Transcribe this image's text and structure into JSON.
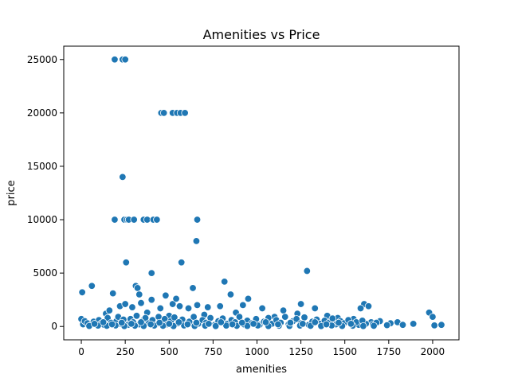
{
  "chart_data": {
    "type": "scatter",
    "title": "Amenities vs Price",
    "xlabel": "amenities",
    "ylabel": "price",
    "xlim": [
      -100,
      2150
    ],
    "ylim": [
      -1250,
      26250
    ],
    "xticks": [
      0,
      250,
      500,
      750,
      1000,
      1250,
      1500,
      1750,
      2000
    ],
    "yticks": [
      0,
      5000,
      10000,
      15000,
      20000,
      25000
    ],
    "xtick_labels": [
      "0",
      "250",
      "500",
      "750",
      "1000",
      "1250",
      "1500",
      "1750",
      "2000"
    ],
    "ytick_labels": [
      "0",
      "5000",
      "10000",
      "15000",
      "20000",
      "25000"
    ],
    "grid": false,
    "color": "#1f77b4",
    "points": [
      {
        "x": 190,
        "y": 25000
      },
      {
        "x": 235,
        "y": 25000
      },
      {
        "x": 250,
        "y": 25000
      },
      {
        "x": 455,
        "y": 20000
      },
      {
        "x": 470,
        "y": 20000
      },
      {
        "x": 520,
        "y": 20000
      },
      {
        "x": 545,
        "y": 20000
      },
      {
        "x": 565,
        "y": 20000
      },
      {
        "x": 590,
        "y": 20000
      },
      {
        "x": 235,
        "y": 14000
      },
      {
        "x": 190,
        "y": 10000
      },
      {
        "x": 245,
        "y": 10000
      },
      {
        "x": 260,
        "y": 10000
      },
      {
        "x": 270,
        "y": 10000
      },
      {
        "x": 300,
        "y": 10000
      },
      {
        "x": 355,
        "y": 10000
      },
      {
        "x": 375,
        "y": 10000
      },
      {
        "x": 410,
        "y": 10000
      },
      {
        "x": 430,
        "y": 10000
      },
      {
        "x": 660,
        "y": 10000
      },
      {
        "x": 655,
        "y": 8000
      },
      {
        "x": 255,
        "y": 6000
      },
      {
        "x": 570,
        "y": 6000
      },
      {
        "x": 400,
        "y": 5000
      },
      {
        "x": 1285,
        "y": 5200
      },
      {
        "x": 5,
        "y": 3200
      },
      {
        "x": 60,
        "y": 3800
      },
      {
        "x": 180,
        "y": 3100
      },
      {
        "x": 310,
        "y": 3800
      },
      {
        "x": 320,
        "y": 3600
      },
      {
        "x": 330,
        "y": 3000
      },
      {
        "x": 635,
        "y": 3600
      },
      {
        "x": 815,
        "y": 4200
      },
      {
        "x": 850,
        "y": 3000
      },
      {
        "x": 950,
        "y": 2600
      },
      {
        "x": 920,
        "y": 2000
      },
      {
        "x": 1250,
        "y": 2100
      },
      {
        "x": 1610,
        "y": 2100
      },
      {
        "x": 1635,
        "y": 1900
      },
      {
        "x": 1590,
        "y": 1700
      },
      {
        "x": 220,
        "y": 1900
      },
      {
        "x": 250,
        "y": 2100
      },
      {
        "x": 290,
        "y": 1800
      },
      {
        "x": 340,
        "y": 2200
      },
      {
        "x": 400,
        "y": 2500
      },
      {
        "x": 450,
        "y": 1700
      },
      {
        "x": 480,
        "y": 2900
      },
      {
        "x": 520,
        "y": 2100
      },
      {
        "x": 540,
        "y": 2600
      },
      {
        "x": 560,
        "y": 1900
      },
      {
        "x": 610,
        "y": 1700
      },
      {
        "x": 660,
        "y": 2000
      },
      {
        "x": 720,
        "y": 1800
      },
      {
        "x": 790,
        "y": 1900
      },
      {
        "x": 1030,
        "y": 1700
      },
      {
        "x": 1150,
        "y": 1500
      },
      {
        "x": 1230,
        "y": 1200
      },
      {
        "x": 1330,
        "y": 1700
      },
      {
        "x": 1980,
        "y": 1300
      },
      {
        "x": 2000,
        "y": 900
      },
      {
        "x": 140,
        "y": 1200
      },
      {
        "x": 160,
        "y": 1500
      },
      {
        "x": 375,
        "y": 1300
      },
      {
        "x": 500,
        "y": 1000
      },
      {
        "x": 700,
        "y": 1100
      },
      {
        "x": 880,
        "y": 1300
      },
      {
        "x": 1100,
        "y": 900
      },
      {
        "x": 1400,
        "y": 1000
      },
      {
        "x": 1460,
        "y": 800
      },
      {
        "x": 1550,
        "y": 700
      },
      {
        "x": 1700,
        "y": 500
      },
      {
        "x": 1760,
        "y": 300
      },
      {
        "x": 1800,
        "y": 400
      },
      {
        "x": 1830,
        "y": 150
      },
      {
        "x": 1890,
        "y": 250
      },
      {
        "x": 2010,
        "y": 100
      },
      {
        "x": 2050,
        "y": 150
      },
      {
        "x": 1740,
        "y": 120
      },
      {
        "x": 1650,
        "y": 400
      },
      {
        "x": 1620,
        "y": 250
      },
      {
        "x": 1580,
        "y": 150
      },
      {
        "x": 0,
        "y": 700
      },
      {
        "x": 10,
        "y": 200
      },
      {
        "x": 20,
        "y": 500
      },
      {
        "x": 35,
        "y": 300
      },
      {
        "x": 50,
        "y": 100
      },
      {
        "x": 70,
        "y": 450
      },
      {
        "x": 85,
        "y": 200
      },
      {
        "x": 100,
        "y": 600
      },
      {
        "x": 115,
        "y": 300
      },
      {
        "x": 130,
        "y": 150
      },
      {
        "x": 150,
        "y": 800
      },
      {
        "x": 170,
        "y": 350
      },
      {
        "x": 200,
        "y": 500
      },
      {
        "x": 210,
        "y": 900
      },
      {
        "x": 225,
        "y": 250
      },
      {
        "x": 240,
        "y": 650
      },
      {
        "x": 265,
        "y": 150
      },
      {
        "x": 280,
        "y": 700
      },
      {
        "x": 295,
        "y": 400
      },
      {
        "x": 315,
        "y": 1000
      },
      {
        "x": 330,
        "y": 200
      },
      {
        "x": 350,
        "y": 550
      },
      {
        "x": 365,
        "y": 800
      },
      {
        "x": 385,
        "y": 300
      },
      {
        "x": 405,
        "y": 600
      },
      {
        "x": 420,
        "y": 100
      },
      {
        "x": 440,
        "y": 900
      },
      {
        "x": 460,
        "y": 400
      },
      {
        "x": 475,
        "y": 700
      },
      {
        "x": 490,
        "y": 200
      },
      {
        "x": 510,
        "y": 500
      },
      {
        "x": 530,
        "y": 850
      },
      {
        "x": 550,
        "y": 300
      },
      {
        "x": 575,
        "y": 650
      },
      {
        "x": 595,
        "y": 150
      },
      {
        "x": 615,
        "y": 450
      },
      {
        "x": 640,
        "y": 900
      },
      {
        "x": 665,
        "y": 250
      },
      {
        "x": 690,
        "y": 600
      },
      {
        "x": 710,
        "y": 350
      },
      {
        "x": 735,
        "y": 800
      },
      {
        "x": 760,
        "y": 150
      },
      {
        "x": 780,
        "y": 500
      },
      {
        "x": 805,
        "y": 750
      },
      {
        "x": 830,
        "y": 250
      },
      {
        "x": 855,
        "y": 600
      },
      {
        "x": 875,
        "y": 400
      },
      {
        "x": 900,
        "y": 900
      },
      {
        "x": 925,
        "y": 200
      },
      {
        "x": 945,
        "y": 550
      },
      {
        "x": 970,
        "y": 300
      },
      {
        "x": 995,
        "y": 700
      },
      {
        "x": 1015,
        "y": 150
      },
      {
        "x": 1040,
        "y": 450
      },
      {
        "x": 1065,
        "y": 800
      },
      {
        "x": 1085,
        "y": 250
      },
      {
        "x": 1110,
        "y": 600
      },
      {
        "x": 1135,
        "y": 350
      },
      {
        "x": 1160,
        "y": 900
      },
      {
        "x": 1180,
        "y": 200
      },
      {
        "x": 1205,
        "y": 500
      },
      {
        "x": 1225,
        "y": 700
      },
      {
        "x": 1250,
        "y": 300
      },
      {
        "x": 1270,
        "y": 850
      },
      {
        "x": 1295,
        "y": 150
      },
      {
        "x": 1315,
        "y": 450
      },
      {
        "x": 1340,
        "y": 650
      },
      {
        "x": 1360,
        "y": 250
      },
      {
        "x": 1385,
        "y": 550
      },
      {
        "x": 1410,
        "y": 350
      },
      {
        "x": 1430,
        "y": 750
      },
      {
        "x": 1450,
        "y": 200
      },
      {
        "x": 1475,
        "y": 500
      },
      {
        "x": 1495,
        "y": 300
      },
      {
        "x": 1520,
        "y": 600
      },
      {
        "x": 1545,
        "y": 150
      },
      {
        "x": 1565,
        "y": 400
      },
      {
        "x": 1600,
        "y": 550
      },
      {
        "x": 1660,
        "y": 200
      },
      {
        "x": 1680,
        "y": 350
      },
      {
        "x": 45,
        "y": 50
      },
      {
        "x": 95,
        "y": 80
      },
      {
        "x": 145,
        "y": 60
      },
      {
        "x": 195,
        "y": 90
      },
      {
        "x": 245,
        "y": 40
      },
      {
        "x": 305,
        "y": 70
      },
      {
        "x": 355,
        "y": 50
      },
      {
        "x": 415,
        "y": 80
      },
      {
        "x": 465,
        "y": 60
      },
      {
        "x": 525,
        "y": 40
      },
      {
        "x": 585,
        "y": 90
      },
      {
        "x": 645,
        "y": 50
      },
      {
        "x": 705,
        "y": 70
      },
      {
        "x": 765,
        "y": 40
      },
      {
        "x": 825,
        "y": 80
      },
      {
        "x": 885,
        "y": 60
      },
      {
        "x": 945,
        "y": 50
      },
      {
        "x": 1005,
        "y": 90
      },
      {
        "x": 1065,
        "y": 40
      },
      {
        "x": 1125,
        "y": 70
      },
      {
        "x": 1185,
        "y": 50
      },
      {
        "x": 1245,
        "y": 80
      },
      {
        "x": 1305,
        "y": 60
      },
      {
        "x": 1365,
        "y": 40
      },
      {
        "x": 1425,
        "y": 90
      },
      {
        "x": 1485,
        "y": 50
      },
      {
        "x": 1545,
        "y": 70
      },
      {
        "x": 1605,
        "y": 40
      },
      {
        "x": 1665,
        "y": 60
      },
      {
        "x": 75,
        "y": 250
      },
      {
        "x": 125,
        "y": 400
      },
      {
        "x": 175,
        "y": 200
      },
      {
        "x": 230,
        "y": 350
      },
      {
        "x": 285,
        "y": 250
      },
      {
        "x": 340,
        "y": 400
      },
      {
        "x": 395,
        "y": 200
      },
      {
        "x": 445,
        "y": 350
      },
      {
        "x": 500,
        "y": 250
      },
      {
        "x": 555,
        "y": 400
      },
      {
        "x": 605,
        "y": 200
      },
      {
        "x": 655,
        "y": 350
      },
      {
        "x": 725,
        "y": 250
      },
      {
        "x": 795,
        "y": 400
      },
      {
        "x": 860,
        "y": 200
      },
      {
        "x": 915,
        "y": 350
      },
      {
        "x": 980,
        "y": 250
      },
      {
        "x": 1050,
        "y": 400
      },
      {
        "x": 1120,
        "y": 200
      },
      {
        "x": 1190,
        "y": 350
      },
      {
        "x": 1260,
        "y": 250
      },
      {
        "x": 1330,
        "y": 400
      },
      {
        "x": 1395,
        "y": 200
      },
      {
        "x": 1465,
        "y": 350
      },
      {
        "x": 1535,
        "y": 250
      }
    ]
  }
}
